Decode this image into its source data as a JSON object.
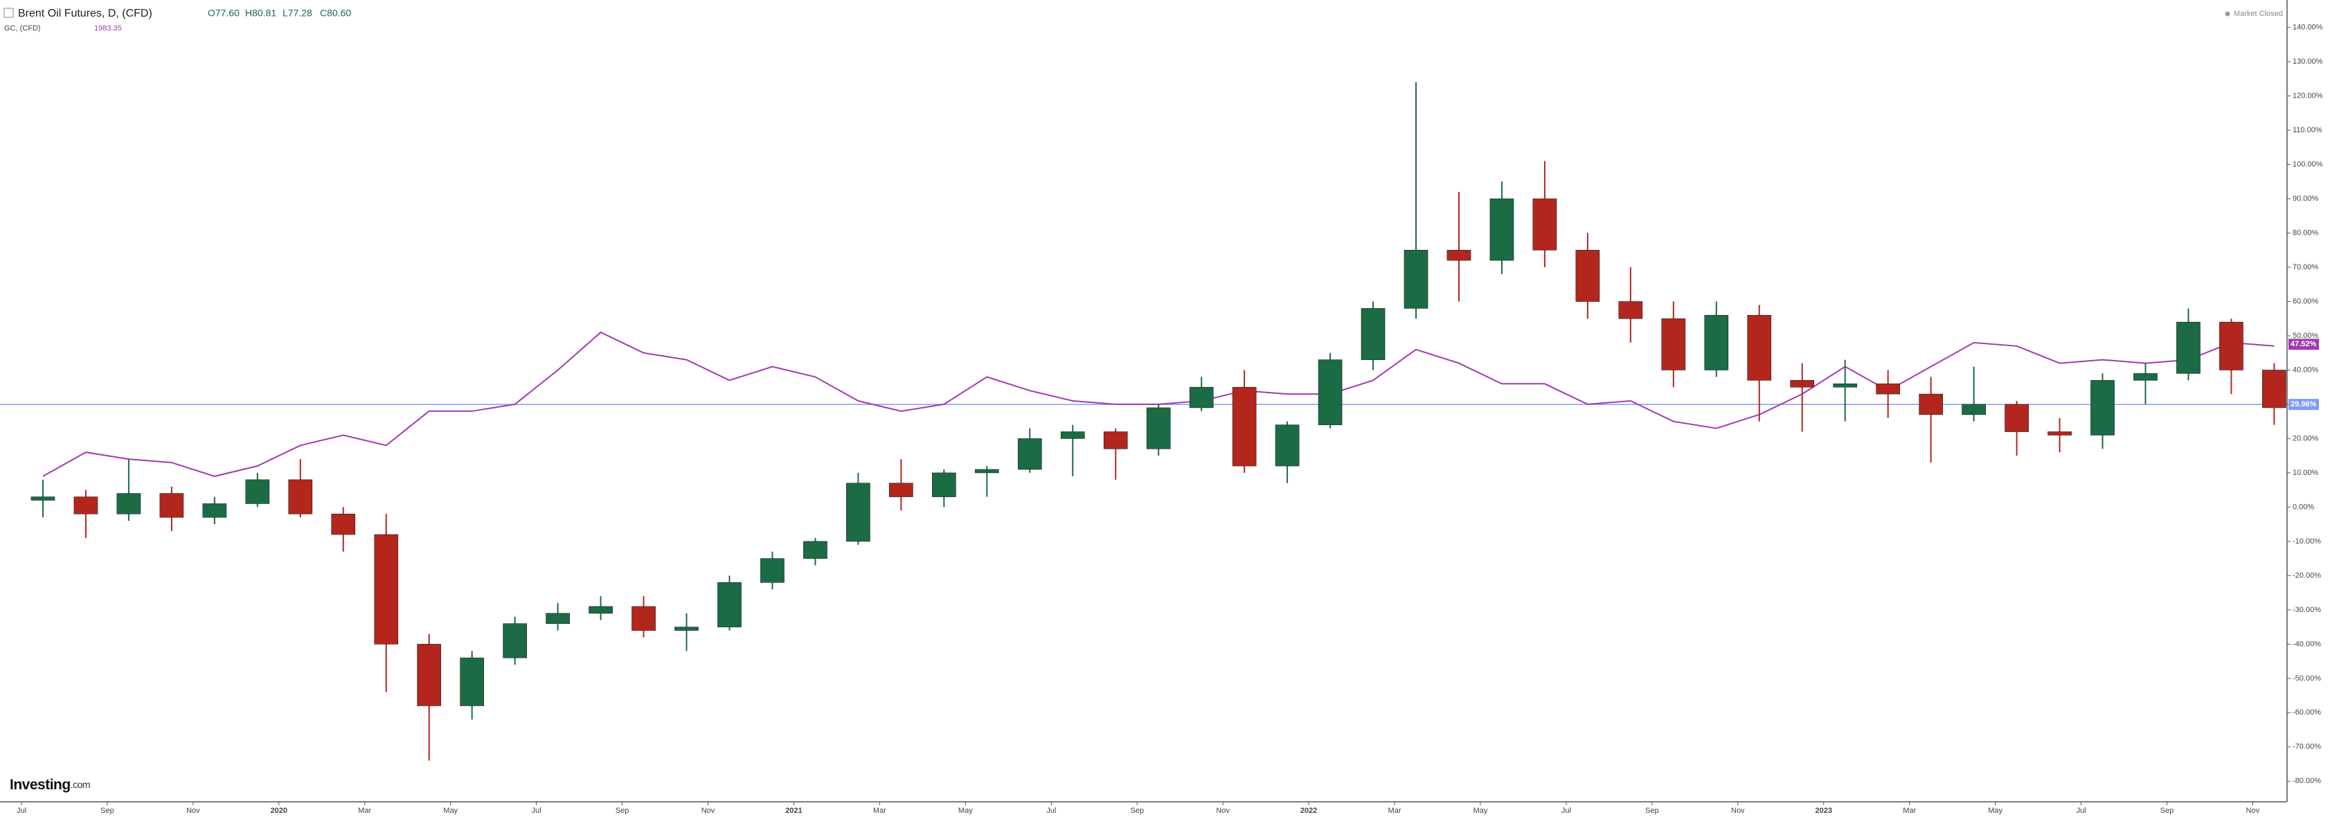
{
  "chart_data": {
    "type": "candlestick",
    "title": "Brent Oil Futures, D, (CFD)",
    "quote": [
      "O77.60",
      "H80.81",
      "L77.28",
      "C80.60"
    ],
    "status": "Market Closed",
    "logo": "Investing",
    "logo_suffix": ".com",
    "x": [
      1.5,
      2.5,
      3.5,
      4.5,
      5.5,
      6.5,
      7.5,
      8.5,
      9.5,
      10.5,
      11.5,
      12.5,
      13.5,
      14.5,
      15.5,
      16.5,
      17.5,
      18.5,
      19.5,
      20.5,
      21.5,
      22.5,
      23.5,
      24.5,
      25.5,
      26.5,
      27.5,
      28.5,
      29.5,
      30.5,
      31.5,
      32.5,
      33.5,
      34.5,
      35.5,
      36.5,
      37.5,
      38.5,
      39.5,
      40.5,
      41.5,
      42.5,
      43.5,
      44.5,
      45.5,
      46.5,
      47.5,
      48.5,
      49.5,
      50.5,
      51.5,
      52.5,
      53.5
    ],
    "xlim": [
      0.5,
      53.8
    ],
    "xticks": [
      {
        "value": 1,
        "label": "Jul"
      },
      {
        "value": 3,
        "label": "Sep"
      },
      {
        "value": 5,
        "label": "Nov"
      },
      {
        "value": 7,
        "label": "2020"
      },
      {
        "value": 9,
        "label": "Mar"
      },
      {
        "value": 11,
        "label": "May"
      },
      {
        "value": 13,
        "label": "Jul"
      },
      {
        "value": 15,
        "label": "Sep"
      },
      {
        "value": 17,
        "label": "Nov"
      },
      {
        "value": 19,
        "label": "2021"
      },
      {
        "value": 21,
        "label": "Mar"
      },
      {
        "value": 23,
        "label": "May"
      },
      {
        "value": 25,
        "label": "Jul"
      },
      {
        "value": 27,
        "label": "Sep"
      },
      {
        "value": 29,
        "label": "Nov"
      },
      {
        "value": 31,
        "label": "2022"
      },
      {
        "value": 33,
        "label": "Mar"
      },
      {
        "value": 35,
        "label": "May"
      },
      {
        "value": 37,
        "label": "Jul"
      },
      {
        "value": 39,
        "label": "Sep"
      },
      {
        "value": 41,
        "label": "Nov"
      },
      {
        "value": 43,
        "label": "2023"
      },
      {
        "value": 45,
        "label": "Mar"
      },
      {
        "value": 47,
        "label": "May"
      },
      {
        "value": 49,
        "label": "Jul"
      },
      {
        "value": 51,
        "label": "Sep"
      },
      {
        "value": 53,
        "label": "Nov"
      }
    ],
    "ylim": [
      -86,
      148
    ],
    "yticks": [
      {
        "value": 140,
        "label": "140.00%"
      },
      {
        "value": 130,
        "label": "130.00%"
      },
      {
        "value": 120,
        "label": "120.00%"
      },
      {
        "value": 110,
        "label": "110.00%"
      },
      {
        "value": 100,
        "label": "100.00%"
      },
      {
        "value": 90,
        "label": "90.00%"
      },
      {
        "value": 80,
        "label": "80.00%"
      },
      {
        "value": 70,
        "label": "70.00%"
      },
      {
        "value": 60,
        "label": "60.00%"
      },
      {
        "value": 50,
        "label": "50.00%"
      },
      {
        "value": 40,
        "label": "40.00%"
      },
      {
        "value": 30,
        "label": "30.00%"
      },
      {
        "value": 20,
        "label": "20.00%"
      },
      {
        "value": 10,
        "label": "10.00%"
      },
      {
        "value": 0,
        "label": "0.00%"
      },
      {
        "value": -10,
        "label": "-10.00%"
      },
      {
        "value": -20,
        "label": "-20.00%"
      },
      {
        "value": -30,
        "label": "-30.00%"
      },
      {
        "value": -40,
        "label": "-40.00%"
      },
      {
        "value": -50,
        "label": "-50.00%"
      },
      {
        "value": -60,
        "label": "-60.00%"
      },
      {
        "value": -70,
        "label": "-70.00%"
      },
      {
        "value": -80,
        "label": "-80.00%"
      }
    ],
    "series": [
      {
        "name": "Brent Oil Futures, D, (CFD)",
        "up_color": "#1b6b45",
        "down_color": "#b3261e",
        "open": [
          2,
          3,
          -2,
          4,
          -3,
          1,
          8,
          -2,
          -8,
          -40,
          -58,
          -44,
          -34,
          -31,
          -29,
          -36,
          -35,
          -22,
          -15,
          -10,
          7,
          3,
          10,
          11,
          20,
          22,
          17,
          29,
          35,
          12,
          24,
          43,
          58,
          75,
          72,
          90,
          75,
          60,
          55,
          40,
          56,
          37,
          35,
          36,
          33,
          27,
          30,
          22,
          21,
          37,
          39,
          54,
          40
        ],
        "high": [
          8,
          5,
          14,
          6,
          3,
          10,
          14,
          0,
          -2,
          -37,
          -42,
          -32,
          -28,
          -26,
          -26,
          -31,
          -20,
          -13,
          -9,
          10,
          14,
          11,
          12,
          23,
          24,
          23,
          30,
          38,
          40,
          25,
          45,
          60,
          124,
          92,
          95,
          101,
          80,
          70,
          60,
          60,
          59,
          42,
          43,
          40,
          38,
          41,
          31,
          26,
          39,
          42,
          58,
          55,
          42
        ],
        "low": [
          -3,
          -9,
          -4,
          -7,
          -5,
          0,
          -3,
          -13,
          -54,
          -74,
          -62,
          -46,
          -36,
          -33,
          -38,
          -42,
          -36,
          -24,
          -17,
          -11,
          -1,
          0,
          3,
          10,
          9,
          8,
          15,
          28,
          10,
          7,
          23,
          40,
          55,
          60,
          68,
          70,
          55,
          48,
          35,
          38,
          25,
          22,
          25,
          26,
          13,
          25,
          15,
          16,
          17,
          30,
          37,
          33,
          24
        ],
        "close": [
          3,
          -2,
          4,
          -3,
          1,
          8,
          -2,
          -8,
          -40,
          -58,
          -44,
          -34,
          -31,
          -29,
          -36,
          -35,
          -22,
          -15,
          -10,
          7,
          3,
          10,
          11,
          20,
          22,
          17,
          29,
          35,
          12,
          24,
          43,
          58,
          75,
          72,
          90,
          75,
          60,
          55,
          40,
          56,
          37,
          35,
          36,
          33,
          27,
          30,
          22,
          21,
          37,
          39,
          54,
          40,
          29
        ],
        "last": {
          "value": 29.96,
          "label": "29.96%"
        },
        "line_color": "#7f9cf5"
      },
      {
        "name": "GC, (CFD)",
        "price": "1983.35",
        "color": "#a13bb0",
        "values": [
          9,
          16,
          14,
          13,
          9,
          12,
          18,
          21,
          18,
          28,
          28,
          30,
          40,
          51,
          45,
          43,
          37,
          41,
          38,
          31,
          28,
          30,
          38,
          34,
          31,
          30,
          30,
          31,
          34,
          33,
          33,
          37,
          46,
          42,
          36,
          36,
          30,
          31,
          25,
          23,
          27,
          33,
          41,
          34,
          41,
          48,
          47,
          42,
          43,
          42,
          43,
          48,
          47
        ],
        "last": {
          "value": 47.52,
          "label": "47.52%"
        }
      }
    ]
  }
}
